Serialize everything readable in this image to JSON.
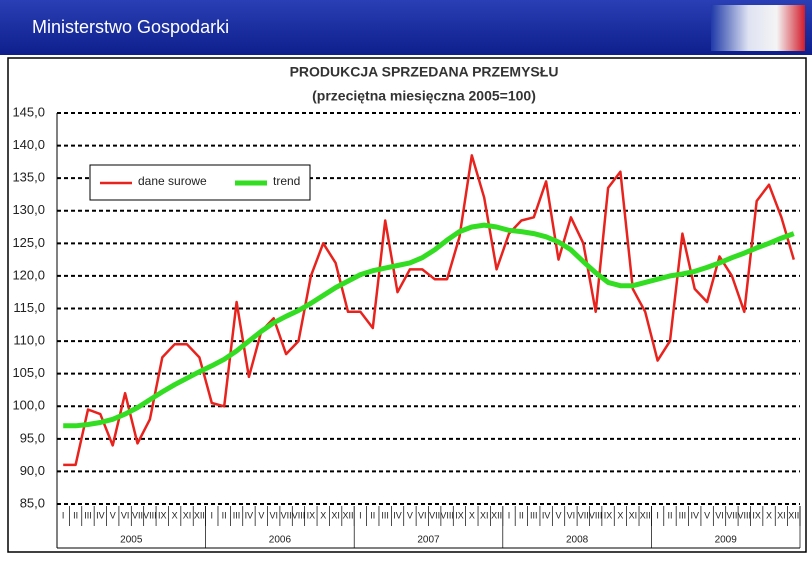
{
  "header": {
    "title": "Ministerstwo Gospodarki"
  },
  "chart_data": {
    "type": "line",
    "title": "PRODUKCJA SPRZEDANA PRZEMYSŁU",
    "subtitle": "(przeciętna miesięczna 2005=100)",
    "categories": [
      "I",
      "II",
      "III",
      "IV",
      "V",
      "VI",
      "VII",
      "VIII",
      "IX",
      "X",
      "XI",
      "XII",
      "I",
      "II",
      "III",
      "IV",
      "V",
      "VI",
      "VII",
      "VIII",
      "IX",
      "X",
      "XI",
      "XII",
      "I",
      "II",
      "III",
      "IV",
      "V",
      "VI",
      "VII",
      "VIII",
      "IX",
      "X",
      "XI",
      "XII",
      "I",
      "II",
      "III",
      "IV",
      "V",
      "VI",
      "VII",
      "VIII",
      "IX",
      "X",
      "XI",
      "XII",
      "I",
      "II",
      "III",
      "IV",
      "V",
      "VI",
      "VII",
      "VIII",
      "IX",
      "X",
      "XI",
      "XII"
    ],
    "years": [
      "2005",
      "2006",
      "2007",
      "2008",
      "2009"
    ],
    "series": [
      {
        "name": "dane surowe",
        "color": "#e8231e",
        "values": [
          91,
          91,
          99.5,
          98.8,
          94,
          102,
          94.3,
          98,
          107.5,
          109.5,
          109.5,
          107.5,
          100.5,
          100,
          116,
          104.5,
          111.5,
          113.5,
          108,
          110,
          120,
          125,
          122,
          114.5,
          114.5,
          112,
          128.5,
          117.5,
          121,
          121,
          119.5,
          119.5,
          126,
          138.5,
          132,
          121,
          126.5,
          128.5,
          129,
          134.5,
          122.5,
          129,
          125,
          114.5,
          133.5,
          136,
          118,
          114.5,
          107,
          110,
          126.5,
          118,
          116,
          123,
          120,
          114.5,
          131.5,
          134,
          129,
          122.5
        ]
      },
      {
        "name": "trend",
        "color": "#33dd22",
        "values": [
          97,
          97,
          97.2,
          97.5,
          98,
          98.8,
          99.8,
          101,
          102.2,
          103.3,
          104.3,
          105.3,
          106.2,
          107.2,
          108.5,
          110,
          111.5,
          112.8,
          113.8,
          114.7,
          115.8,
          117,
          118.2,
          119.2,
          120.2,
          120.8,
          121.2,
          121.6,
          122,
          122.8,
          124,
          125.5,
          126.8,
          127.5,
          127.8,
          127.5,
          127,
          126.8,
          126.5,
          126,
          125.2,
          124,
          122.2,
          120.5,
          119,
          118.5,
          118.5,
          119,
          119.5,
          120,
          120.3,
          120.7,
          121.3,
          122,
          122.8,
          123.5,
          124.3,
          125,
          125.8,
          126.5
        ]
      }
    ],
    "ylim": [
      85,
      145
    ],
    "yticks": [
      {
        "value": 85,
        "label": "85,0"
      },
      {
        "value": 90,
        "label": "90,0"
      },
      {
        "value": 95,
        "label": "95,0"
      },
      {
        "value": 100,
        "label": "100,0"
      },
      {
        "value": 105,
        "label": "105,0"
      },
      {
        "value": 110,
        "label": "110,0"
      },
      {
        "value": 115,
        "label": "115,0"
      },
      {
        "value": 120,
        "label": "120,0"
      },
      {
        "value": 125,
        "label": "125,0"
      },
      {
        "value": 130,
        "label": "130,0"
      },
      {
        "value": 135,
        "label": "135,0"
      },
      {
        "value": 140,
        "label": "140,0"
      },
      {
        "value": 145,
        "label": "145,0"
      }
    ],
    "grid": true
  }
}
